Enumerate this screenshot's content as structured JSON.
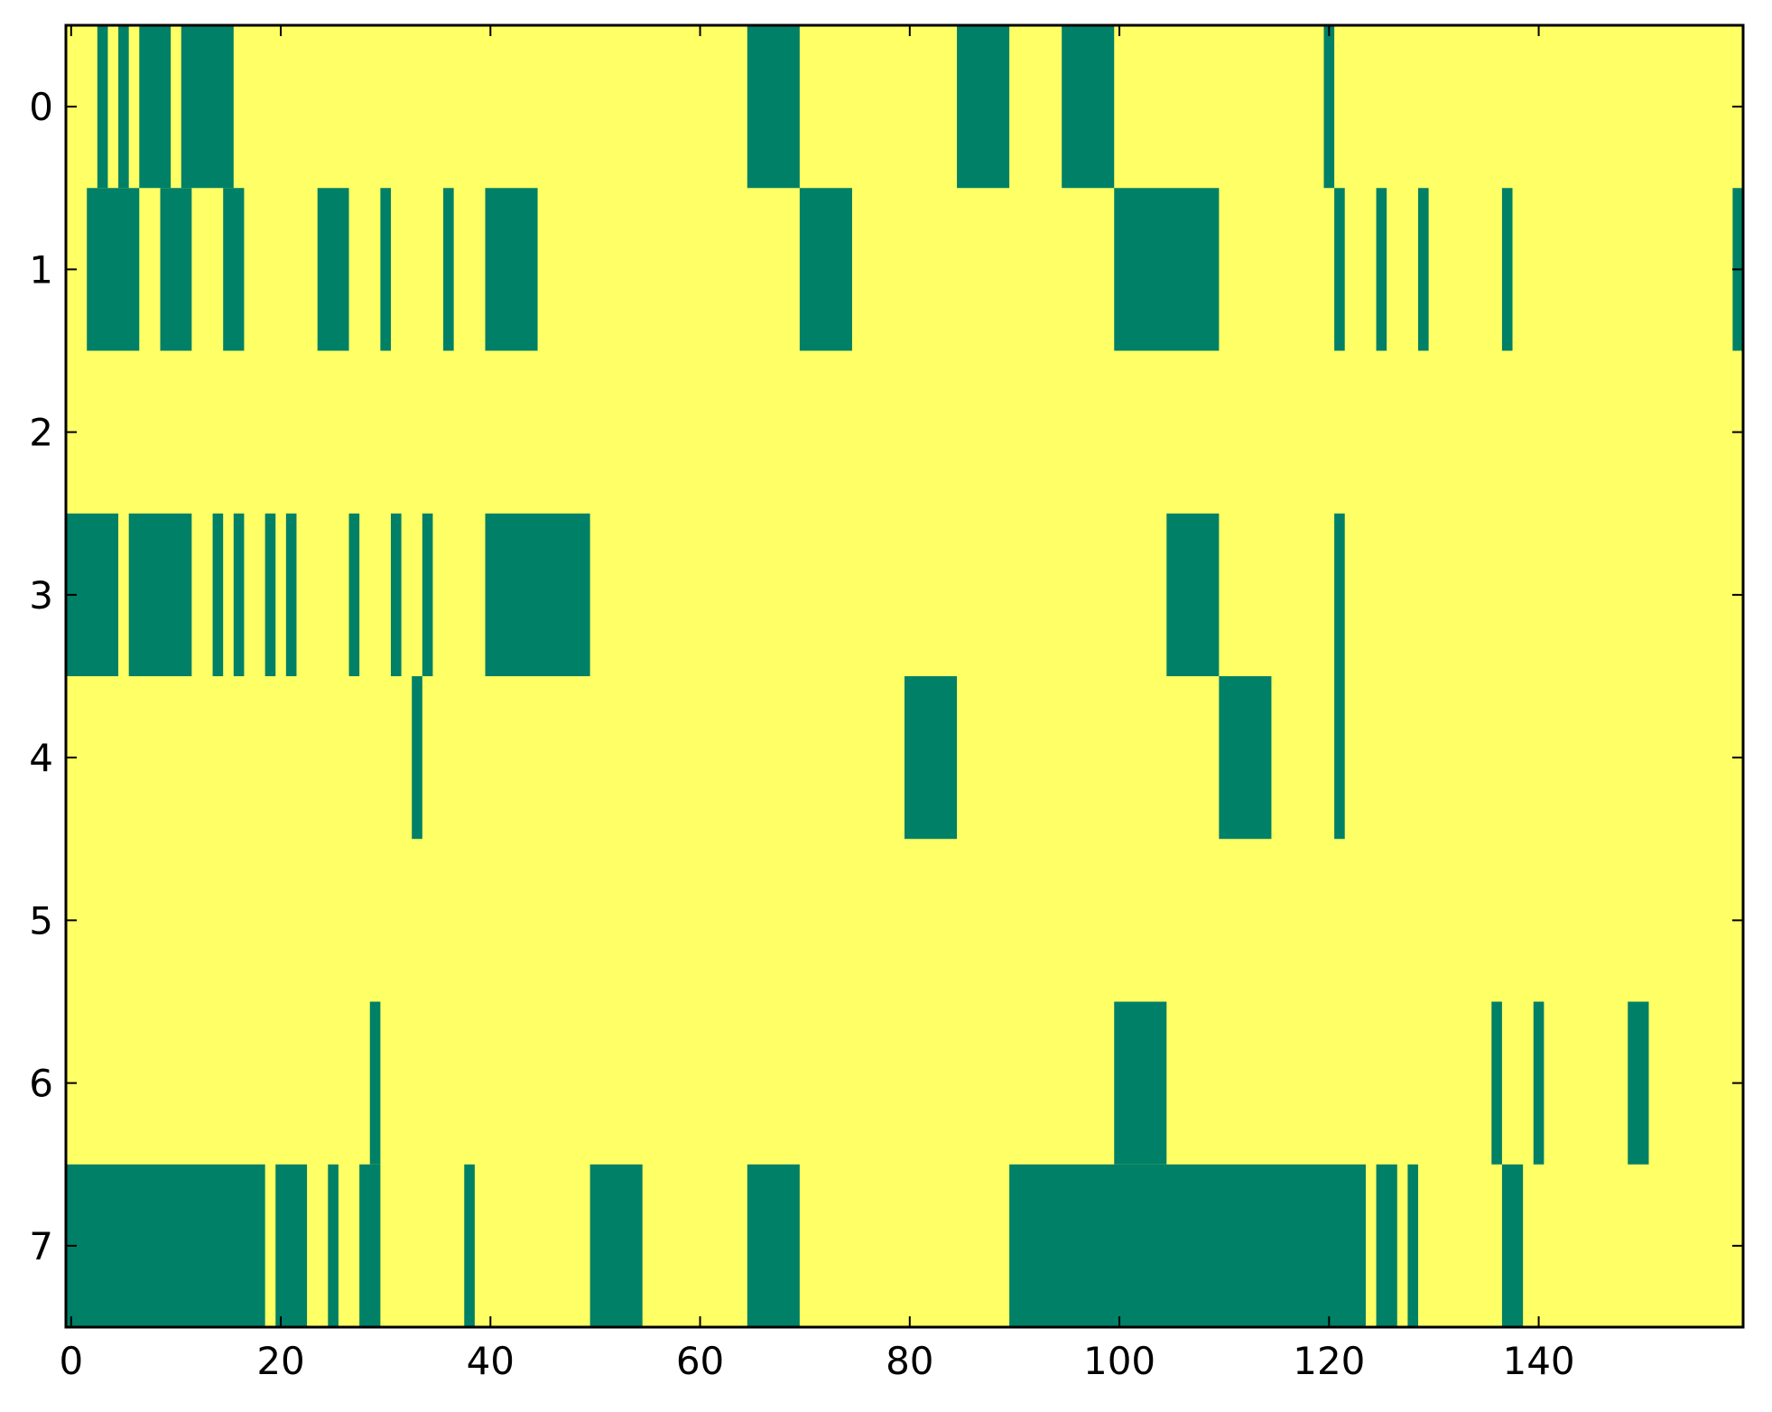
{
  "chart_data": {
    "type": "heatmap",
    "title": "",
    "xlabel": "",
    "ylabel": "",
    "xlim": [
      -0.5,
      159.5
    ],
    "ylim": [
      -0.5,
      7.5
    ],
    "x_ticks": [
      0,
      20,
      40,
      60,
      80,
      100,
      120,
      140
    ],
    "x_tick_labels": [
      "0",
      "20",
      "40",
      "60",
      "80",
      "100",
      "120",
      "140"
    ],
    "y_ticks": [
      0,
      1,
      2,
      3,
      4,
      5,
      6,
      7
    ],
    "y_tick_labels": [
      "0",
      "1",
      "2",
      "3",
      "4",
      "5",
      "6",
      "7"
    ],
    "n_columns": 160,
    "n_rows": 8,
    "grid": false,
    "colormap": {
      "0": "#FFFF66",
      "1": "#008066"
    },
    "rows": [
      {
        "row": 0,
        "active_columns": [
          3,
          5,
          7,
          8,
          9,
          11,
          12,
          13,
          14,
          15,
          65,
          66,
          67,
          68,
          69,
          85,
          86,
          87,
          88,
          89,
          95,
          96,
          97,
          98,
          99,
          120
        ]
      },
      {
        "row": 1,
        "active_columns": [
          2,
          3,
          4,
          5,
          6,
          9,
          10,
          11,
          15,
          16,
          24,
          25,
          26,
          30,
          36,
          40,
          41,
          42,
          43,
          44,
          70,
          71,
          72,
          73,
          74,
          100,
          101,
          102,
          103,
          104,
          105,
          106,
          107,
          108,
          109,
          121,
          125,
          129,
          137,
          159
        ]
      },
      {
        "row": 2,
        "active_columns": []
      },
      {
        "row": 3,
        "active_columns": [
          0,
          1,
          2,
          3,
          4,
          6,
          7,
          8,
          9,
          10,
          11,
          14,
          16,
          19,
          21,
          27,
          31,
          34,
          40,
          41,
          42,
          43,
          44,
          45,
          46,
          47,
          48,
          49,
          105,
          106,
          107,
          108,
          109,
          121
        ]
      },
      {
        "row": 4,
        "active_columns": [
          33,
          80,
          81,
          82,
          83,
          84,
          110,
          111,
          112,
          113,
          114,
          121
        ]
      },
      {
        "row": 5,
        "active_columns": []
      },
      {
        "row": 6,
        "active_columns": [
          29,
          100,
          101,
          102,
          103,
          104,
          136,
          140,
          149,
          150
        ]
      },
      {
        "row": 7,
        "active_columns": [
          0,
          1,
          2,
          3,
          4,
          5,
          6,
          7,
          8,
          9,
          10,
          11,
          12,
          13,
          14,
          15,
          16,
          17,
          18,
          20,
          21,
          22,
          25,
          28,
          29,
          38,
          50,
          51,
          52,
          53,
          54,
          65,
          66,
          67,
          68,
          69,
          90,
          91,
          92,
          93,
          94,
          95,
          96,
          97,
          98,
          99,
          100,
          101,
          102,
          103,
          104,
          105,
          106,
          107,
          108,
          109,
          110,
          111,
          112,
          113,
          114,
          115,
          116,
          117,
          118,
          119,
          120,
          121,
          122,
          123,
          125,
          126,
          128,
          137,
          138
        ]
      }
    ]
  }
}
